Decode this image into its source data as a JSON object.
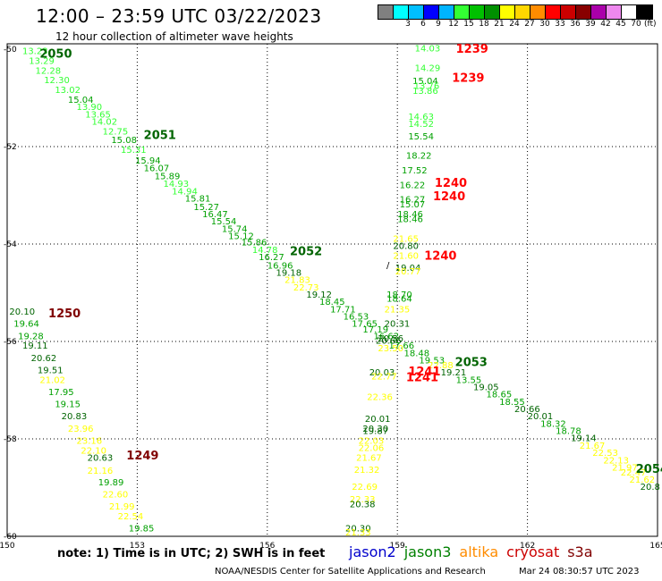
{
  "header": {
    "title": "12:00 – 23:59 UTC 03/22/2023",
    "subtitle": "12 hour collection of altimeter wave heights"
  },
  "legend": {
    "unit": "(ft)",
    "swatches": [
      {
        "color": "#808080",
        "label": ""
      },
      {
        "color": "#00ffff",
        "label": "3"
      },
      {
        "color": "#00bfff",
        "label": "6"
      },
      {
        "color": "#0000ff",
        "label": "9"
      },
      {
        "color": "#00b4ff",
        "label": "12"
      },
      {
        "color": "#33ff33",
        "label": "15"
      },
      {
        "color": "#00c000",
        "label": "18"
      },
      {
        "color": "#009000",
        "label": "21"
      },
      {
        "color": "#ffff00",
        "label": "24"
      },
      {
        "color": "#ffd700",
        "label": "27"
      },
      {
        "color": "#ff8c00",
        "label": "30"
      },
      {
        "color": "#ff0000",
        "label": "33"
      },
      {
        "color": "#cc0000",
        "label": "36"
      },
      {
        "color": "#880000",
        "label": "39"
      },
      {
        "color": "#aa00aa",
        "label": "42"
      },
      {
        "color": "#ee88ee",
        "label": "45"
      },
      {
        "color": "#ffffff",
        "label": "70"
      },
      {
        "color": "#000000",
        "label": ""
      }
    ]
  },
  "axes": {
    "lon_ticks": [
      {
        "value": 150,
        "label": "150"
      },
      {
        "value": 153,
        "label": "153"
      },
      {
        "value": 156,
        "label": "156"
      },
      {
        "value": 159,
        "label": "159"
      },
      {
        "value": 162,
        "label": "162"
      },
      {
        "value": 165,
        "label": "165"
      }
    ],
    "lat_ticks": [
      {
        "value": -50,
        "label": "-50"
      },
      {
        "value": -52,
        "label": "-52"
      },
      {
        "value": -54,
        "label": "-54"
      },
      {
        "value": -56,
        "label": "-56"
      },
      {
        "value": -58,
        "label": "-58"
      },
      {
        "value": -60,
        "label": "-60"
      }
    ]
  },
  "colors": {
    "light_green": "#33ff33",
    "green": "#00a000",
    "dark_green": "#006400",
    "yellow": "#ffff00",
    "red": "#ff0000",
    "dark_red": "#800000"
  },
  "track_labels": [
    {
      "text": "2050",
      "lon": 150.75,
      "lat": -50.17,
      "color": "dark_green"
    },
    {
      "text": "2051",
      "lon": 153.15,
      "lat": -51.84,
      "color": "dark_green"
    },
    {
      "text": "2052",
      "lon": 156.52,
      "lat": -54.23,
      "color": "dark_green"
    },
    {
      "text": "2053",
      "lon": 160.33,
      "lat": -56.5,
      "color": "dark_green"
    },
    {
      "text": "2054",
      "lon": 164.5,
      "lat": -58.7,
      "color": "dark_green"
    },
    {
      "text": "1239",
      "lon": 160.35,
      "lat": -50.07,
      "color": "red"
    },
    {
      "text": "1239",
      "lon": 160.26,
      "lat": -50.67,
      "color": "red"
    },
    {
      "text": "1240",
      "lon": 159.86,
      "lat": -52.83,
      "color": "red"
    },
    {
      "text": "1240",
      "lon": 159.82,
      "lat": -53.1,
      "color": "red"
    },
    {
      "text": "1240",
      "lon": 159.62,
      "lat": -54.32,
      "color": "red"
    },
    {
      "text": "1250",
      "lon": 150.95,
      "lat": -55.5,
      "color": "dark_red"
    },
    {
      "text": "1249",
      "lon": 152.75,
      "lat": -58.42,
      "color": "dark_red"
    }
  ],
  "points": [
    {
      "v": "13.23",
      "lon": 150.35,
      "lat": -50.1,
      "c": "light_green"
    },
    {
      "v": "13.29",
      "lon": 150.5,
      "lat": -50.3,
      "c": "light_green"
    },
    {
      "v": "12.28",
      "lon": 150.65,
      "lat": -50.5,
      "c": "light_green"
    },
    {
      "v": "12.30",
      "lon": 150.85,
      "lat": -50.7,
      "c": "light_green"
    },
    {
      "v": "13.02",
      "lon": 151.1,
      "lat": -50.9,
      "c": "light_green"
    },
    {
      "v": "15.04",
      "lon": 151.4,
      "lat": -51.1,
      "c": "green"
    },
    {
      "v": "13.90",
      "lon": 151.6,
      "lat": -51.25,
      "c": "light_green"
    },
    {
      "v": "13.65",
      "lon": 151.8,
      "lat": -51.4,
      "c": "light_green"
    },
    {
      "v": "14.02",
      "lon": 151.95,
      "lat": -51.55,
      "c": "light_green"
    },
    {
      "v": "12.75",
      "lon": 152.2,
      "lat": -51.75,
      "c": "light_green"
    },
    {
      "v": "15.08",
      "lon": 152.4,
      "lat": -51.93,
      "c": "green"
    },
    {
      "v": "15.31",
      "lon": 152.62,
      "lat": -52.13,
      "c": "light_green"
    },
    {
      "v": "15.94",
      "lon": 152.95,
      "lat": -52.35,
      "c": "green"
    },
    {
      "v": "16.07",
      "lon": 153.15,
      "lat": -52.5,
      "c": "green"
    },
    {
      "v": "15.89",
      "lon": 153.4,
      "lat": -52.67,
      "c": "green"
    },
    {
      "v": "14.93",
      "lon": 153.6,
      "lat": -52.83,
      "c": "light_green"
    },
    {
      "v": "14.94",
      "lon": 153.8,
      "lat": -52.98,
      "c": "light_green"
    },
    {
      "v": "15.81",
      "lon": 154.1,
      "lat": -53.13,
      "c": "green"
    },
    {
      "v": "15.27",
      "lon": 154.3,
      "lat": -53.3,
      "c": "green"
    },
    {
      "v": "16.47",
      "lon": 154.5,
      "lat": -53.45,
      "c": "green"
    },
    {
      "v": "15.54",
      "lon": 154.7,
      "lat": -53.6,
      "c": "green"
    },
    {
      "v": "15.74",
      "lon": 154.95,
      "lat": -53.75,
      "c": "green"
    },
    {
      "v": "15.12",
      "lon": 155.1,
      "lat": -53.9,
      "c": "green"
    },
    {
      "v": "15.86",
      "lon": 155.4,
      "lat": -54.03,
      "c": "green"
    },
    {
      "v": "14.78",
      "lon": 155.65,
      "lat": -54.18,
      "c": "light_green"
    },
    {
      "v": "16.27",
      "lon": 155.8,
      "lat": -54.33,
      "c": "green"
    },
    {
      "v": "16.96",
      "lon": 156.0,
      "lat": -54.5,
      "c": "green"
    },
    {
      "v": "19.18",
      "lon": 156.2,
      "lat": -54.65,
      "c": "dark_green"
    },
    {
      "v": "21.83",
      "lon": 156.4,
      "lat": -54.8,
      "c": "yellow"
    },
    {
      "v": "22.73",
      "lon": 156.6,
      "lat": -54.95,
      "c": "yellow"
    },
    {
      "v": "19.12",
      "lon": 156.9,
      "lat": -55.1,
      "c": "dark_green"
    },
    {
      "v": "18.45",
      "lon": 157.2,
      "lat": -55.25,
      "c": "green"
    },
    {
      "v": "17.71",
      "lon": 157.45,
      "lat": -55.4,
      "c": "green"
    },
    {
      "v": "16.53",
      "lon": 157.75,
      "lat": -55.55,
      "c": "green"
    },
    {
      "v": "17.65",
      "lon": 157.95,
      "lat": -55.7,
      "c": "green"
    },
    {
      "v": "17.19",
      "lon": 158.2,
      "lat": -55.82,
      "c": "green"
    },
    {
      "v": "16.62",
      "lon": 158.45,
      "lat": -55.95,
      "c": "green"
    },
    {
      "v": "20.66",
      "lon": 158.5,
      "lat": -56.05,
      "c": "dark_green"
    },
    {
      "v": "17.66",
      "lon": 158.8,
      "lat": -56.15,
      "c": "green"
    },
    {
      "v": "18.48",
      "lon": 159.15,
      "lat": -56.3,
      "c": "green"
    },
    {
      "v": "19.53",
      "lon": 159.5,
      "lat": -56.45,
      "c": "green"
    },
    {
      "v": "19.21",
      "lon": 160.0,
      "lat": -56.7,
      "c": "dark_green"
    },
    {
      "v": "13.55",
      "lon": 160.35,
      "lat": -56.85,
      "c": "green"
    },
    {
      "v": "19.05",
      "lon": 160.75,
      "lat": -57.0,
      "c": "dark_green"
    },
    {
      "v": "18.65",
      "lon": 161.05,
      "lat": -57.15,
      "c": "green"
    },
    {
      "v": "18.55",
      "lon": 161.35,
      "lat": -57.3,
      "c": "green"
    },
    {
      "v": "20.66",
      "lon": 161.7,
      "lat": -57.45,
      "c": "dark_green"
    },
    {
      "v": "20.01",
      "lon": 162.0,
      "lat": -57.6,
      "c": "dark_green"
    },
    {
      "v": "18.32",
      "lon": 162.3,
      "lat": -57.75,
      "c": "green"
    },
    {
      "v": "18.78",
      "lon": 162.65,
      "lat": -57.9,
      "c": "green"
    },
    {
      "v": "19.14",
      "lon": 163.0,
      "lat": -58.05,
      "c": "dark_green"
    },
    {
      "v": "21.67",
      "lon": 163.2,
      "lat": -58.2,
      "c": "yellow"
    },
    {
      "v": "22.53",
      "lon": 163.5,
      "lat": -58.35,
      "c": "yellow"
    },
    {
      "v": "22.13",
      "lon": 163.75,
      "lat": -58.5,
      "c": "yellow"
    },
    {
      "v": "21.97",
      "lon": 163.95,
      "lat": -58.65,
      "c": "yellow"
    },
    {
      "v": "22.47",
      "lon": 164.15,
      "lat": -58.75,
      "c": "yellow"
    },
    {
      "v": "21.62",
      "lon": 164.35,
      "lat": -58.9,
      "c": "yellow"
    },
    {
      "v": "20.8",
      "lon": 164.6,
      "lat": -59.05,
      "c": "dark_green"
    },
    {
      "v": "14.03",
      "lon": 159.4,
      "lat": -50.05,
      "c": "light_green"
    },
    {
      "v": "14.29",
      "lon": 159.4,
      "lat": -50.45,
      "c": "light_green"
    },
    {
      "v": "15.04",
      "lon": 159.35,
      "lat": -50.72,
      "c": "green"
    },
    {
      "v": "13.76",
      "lon": 159.38,
      "lat": -50.82,
      "c": "light_green"
    },
    {
      "v": "13.86",
      "lon": 159.35,
      "lat": -50.92,
      "c": "light_green"
    },
    {
      "v": "14.63",
      "lon": 159.25,
      "lat": -51.45,
      "c": "light_green"
    },
    {
      "v": "14.52",
      "lon": 159.25,
      "lat": -51.6,
      "c": "light_green"
    },
    {
      "v": "15.54",
      "lon": 159.25,
      "lat": -51.85,
      "c": "green"
    },
    {
      "v": "18.22",
      "lon": 159.2,
      "lat": -52.25,
      "c": "green"
    },
    {
      "v": "17.52",
      "lon": 159.1,
      "lat": -52.55,
      "c": "green"
    },
    {
      "v": "16.22",
      "lon": 159.05,
      "lat": -52.85,
      "c": "green"
    },
    {
      "v": "16.27",
      "lon": 159.05,
      "lat": -53.15,
      "c": "green"
    },
    {
      "v": "15.07",
      "lon": 159.05,
      "lat": -53.25,
      "c": "green"
    },
    {
      "v": "18.46",
      "lon": 159.0,
      "lat": -53.45,
      "c": "green"
    },
    {
      "v": "18.46",
      "lon": 159.0,
      "lat": -53.55,
      "c": "green"
    },
    {
      "v": "21.65",
      "lon": 158.9,
      "lat": -53.95,
      "c": "yellow"
    },
    {
      "v": "20.80",
      "lon": 158.9,
      "lat": -54.1,
      "c": "dark_green"
    },
    {
      "v": "21.60",
      "lon": 158.9,
      "lat": -54.3,
      "c": "yellow"
    },
    {
      "v": "19.04",
      "lon": 158.95,
      "lat": -54.55,
      "c": "dark_green"
    },
    {
      "v": "20.77",
      "lon": 158.95,
      "lat": -54.62,
      "c": "yellow"
    },
    {
      "v": "18.70",
      "lon": 158.75,
      "lat": -55.1,
      "c": "green"
    },
    {
      "v": "18.64",
      "lon": 158.75,
      "lat": -55.18,
      "c": "green"
    },
    {
      "v": "21.35",
      "lon": 158.7,
      "lat": -55.4,
      "c": "yellow"
    },
    {
      "v": "20.31",
      "lon": 158.7,
      "lat": -55.7,
      "c": "dark_green"
    },
    {
      "v": "20.56",
      "lon": 158.55,
      "lat": -56.0,
      "c": "dark_green"
    },
    {
      "v": "23.50",
      "lon": 158.55,
      "lat": -56.2,
      "c": "yellow"
    },
    {
      "v": "20.03",
      "lon": 158.35,
      "lat": -56.7,
      "c": "dark_green"
    },
    {
      "v": "22.77",
      "lon": 158.4,
      "lat": -56.78,
      "c": "yellow"
    },
    {
      "v": "22.36",
      "lon": 158.3,
      "lat": -57.2,
      "c": "yellow"
    },
    {
      "v": "20.01",
      "lon": 158.25,
      "lat": -57.65,
      "c": "dark_green"
    },
    {
      "v": "20.30",
      "lon": 158.2,
      "lat": -57.85,
      "c": "dark_green"
    },
    {
      "v": "19.87",
      "lon": 158.2,
      "lat": -57.9,
      "c": "dark_green"
    },
    {
      "v": "22.03",
      "lon": 158.1,
      "lat": -58.1,
      "c": "yellow"
    },
    {
      "v": "22.06",
      "lon": 158.1,
      "lat": -58.25,
      "c": "yellow"
    },
    {
      "v": "21.67",
      "lon": 158.05,
      "lat": -58.45,
      "c": "yellow"
    },
    {
      "v": "21.32",
      "lon": 158.0,
      "lat": -58.7,
      "c": "yellow"
    },
    {
      "v": "22.69",
      "lon": 157.95,
      "lat": -59.05,
      "c": "yellow"
    },
    {
      "v": "22.33",
      "lon": 157.9,
      "lat": -59.3,
      "c": "yellow"
    },
    {
      "v": "20.38",
      "lon": 157.9,
      "lat": -59.4,
      "c": "dark_green"
    },
    {
      "v": "20.30",
      "lon": 157.8,
      "lat": -59.9,
      "c": "dark_green"
    },
    {
      "v": "21.33",
      "lon": 157.8,
      "lat": -59.98,
      "c": "yellow"
    },
    {
      "v": "20.10",
      "lon": 150.05,
      "lat": -55.45,
      "c": "dark_green"
    },
    {
      "v": "19.64",
      "lon": 150.15,
      "lat": -55.7,
      "c": "green"
    },
    {
      "v": "19.28",
      "lon": 150.25,
      "lat": -55.95,
      "c": "green"
    },
    {
      "v": "19.11",
      "lon": 150.35,
      "lat": -56.15,
      "c": "dark_green"
    },
    {
      "v": "20.62",
      "lon": 150.55,
      "lat": -56.4,
      "c": "dark_green"
    },
    {
      "v": "19.51",
      "lon": 150.7,
      "lat": -56.65,
      "c": "dark_green"
    },
    {
      "v": "21.02",
      "lon": 150.75,
      "lat": -56.85,
      "c": "yellow"
    },
    {
      "v": "17.95",
      "lon": 150.95,
      "lat": -57.1,
      "c": "green"
    },
    {
      "v": "19.15",
      "lon": 151.1,
      "lat": -57.35,
      "c": "green"
    },
    {
      "v": "20.83",
      "lon": 151.25,
      "lat": -57.6,
      "c": "dark_green"
    },
    {
      "v": "23.96",
      "lon": 151.4,
      "lat": -57.85,
      "c": "yellow"
    },
    {
      "v": "23.16",
      "lon": 151.6,
      "lat": -58.1,
      "c": "yellow"
    },
    {
      "v": "22.10",
      "lon": 151.7,
      "lat": -58.3,
      "c": "yellow"
    },
    {
      "v": "20.63",
      "lon": 151.85,
      "lat": -58.45,
      "c": "dark_green"
    },
    {
      "v": "21.16",
      "lon": 151.85,
      "lat": -58.72,
      "c": "yellow"
    },
    {
      "v": "19.89",
      "lon": 152.1,
      "lat": -58.95,
      "c": "green"
    },
    {
      "v": "22.60",
      "lon": 152.2,
      "lat": -59.2,
      "c": "yellow"
    },
    {
      "v": "21.99",
      "lon": 152.35,
      "lat": -59.45,
      "c": "yellow"
    },
    {
      "v": "22.54",
      "lon": 152.55,
      "lat": -59.65,
      "c": "yellow"
    },
    {
      "v": "19.85",
      "lon": 152.8,
      "lat": -59.9,
      "c": "green"
    }
  ],
  "crossover": [
    {
      "v": "22.88",
      "lon": 159.7,
      "lat": -56.55,
      "c": "yellow"
    },
    {
      "v": "1241",
      "lon": 159.25,
      "lat": -56.7,
      "c": "red"
    },
    {
      "v": "1241",
      "lon": 159.2,
      "lat": -56.82,
      "c": "red"
    }
  ],
  "footer": {
    "note": "note: 1) Time is in UTC; 2) SWH is in feet",
    "satellites": [
      {
        "name": "jason2",
        "color": "#0000cc"
      },
      {
        "name": "jason3",
        "color": "#008000"
      },
      {
        "name": "altika",
        "color": "#ff8c00"
      },
      {
        "name": "cryosat",
        "color": "#cc0000"
      },
      {
        "name": "s3a",
        "color": "#800000"
      }
    ],
    "credit": "NOAA/NESDIS Center for Satellite Applications and Research",
    "timestamp": "Mar 24 08:30:57 UTC 2023"
  }
}
